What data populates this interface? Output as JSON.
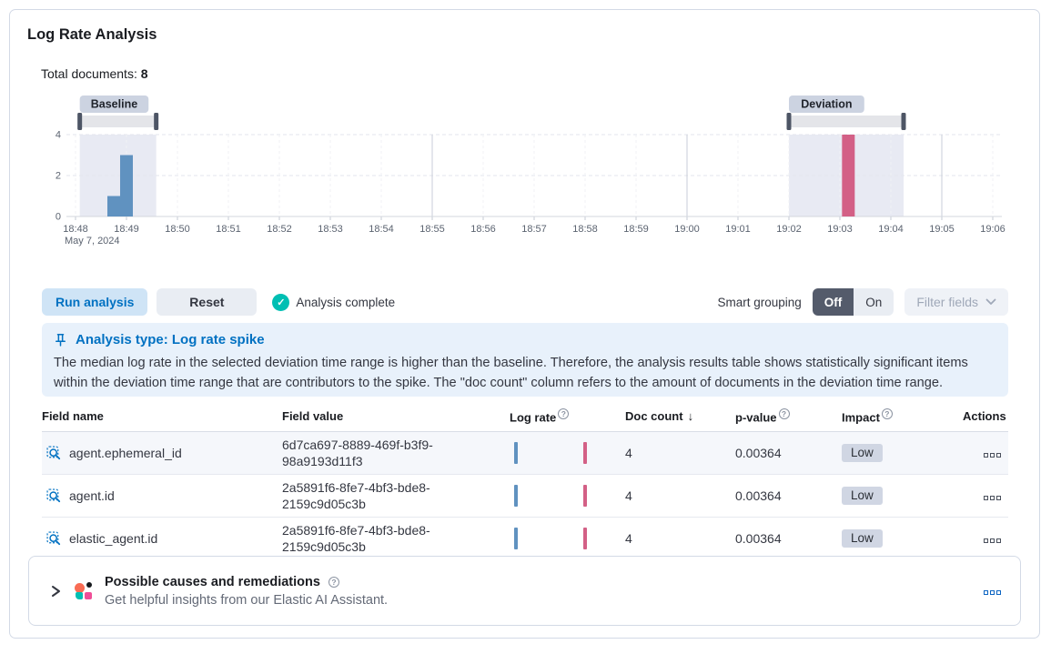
{
  "page": {
    "title": "Log Rate Analysis"
  },
  "summary": {
    "total_documents_label": "Total documents:",
    "total_documents_value": "8"
  },
  "controls": {
    "run_label": "Run analysis",
    "reset_label": "Reset",
    "status": "Analysis complete",
    "smart_grouping_label": "Smart grouping",
    "off_label": "Off",
    "on_label": "On",
    "filter_fields_label": "Filter fields"
  },
  "callout": {
    "title": "Analysis type: Log rate spike",
    "body": "The median log rate in the selected deviation time range is higher than the baseline. Therefore, the analysis results table shows statistically significant items within the deviation time range that are contributors to the spike. The \"doc count\" column refers to the amount of documents in the deviation time range."
  },
  "results_table": {
    "headers": {
      "field_name": "Field name",
      "field_value": "Field value",
      "log_rate": "Log rate",
      "doc_count": "Doc count",
      "p_value": "p-value",
      "impact": "Impact",
      "actions": "Actions"
    },
    "rows": [
      {
        "field_name": "agent.ephemeral_id",
        "field_value": "6d7ca697-8889-469f-b3f9-98a9193d11f3",
        "doc_count": "4",
        "p_value": "0.00364",
        "impact": "Low"
      },
      {
        "field_name": "agent.id",
        "field_value": "2a5891f6-8fe7-4bf3-bde8-2159c9d05c3b",
        "doc_count": "4",
        "p_value": "0.00364",
        "impact": "Low"
      },
      {
        "field_name": "elastic_agent.id",
        "field_value": "2a5891f6-8fe7-4bf3-bde8-2159c9d05c3b",
        "doc_count": "4",
        "p_value": "0.00364",
        "impact": "Low"
      }
    ]
  },
  "ai_panel": {
    "title": "Possible causes and remediations",
    "subtitle": "Get helpful insights from our Elastic AI Assistant."
  },
  "colors": {
    "baseline-bar": "#6092c0",
    "deviation-bar": "#d36086",
    "primary": "#0071c2",
    "check": "#00bfb3",
    "callout-bg": "#e8f1fb",
    "badge-bg": "#d0d6e3"
  },
  "chart_data": {
    "type": "bar",
    "title": "Document count histogram",
    "date_label": "May 7, 2024",
    "x_ticks": [
      "18:48",
      "18:49",
      "18:50",
      "18:51",
      "18:52",
      "18:53",
      "18:54",
      "18:55",
      "18:56",
      "18:57",
      "18:58",
      "18:59",
      "19:00",
      "19:01",
      "19:02",
      "19:03",
      "19:04",
      "19:05",
      "19:06"
    ],
    "y_ticks": [
      0,
      2,
      4
    ],
    "ylim": [
      0,
      4
    ],
    "bars": [
      {
        "time": "18:48:45",
        "value": 1,
        "series": "baseline",
        "color": "#6092c0"
      },
      {
        "time": "18:49:00",
        "value": 3,
        "series": "baseline",
        "color": "#6092c0"
      },
      {
        "time": "19:03:10",
        "value": 4,
        "series": "deviation",
        "color": "#d36086"
      }
    ],
    "windows": [
      {
        "label": "Baseline",
        "start": "18:48:05",
        "end": "18:49:35"
      },
      {
        "label": "Deviation",
        "start": "19:02:00",
        "end": "19:04:15"
      }
    ],
    "major_gridlines": [
      "18:55",
      "19:00",
      "19:05"
    ],
    "legend": "none",
    "grid": true
  }
}
